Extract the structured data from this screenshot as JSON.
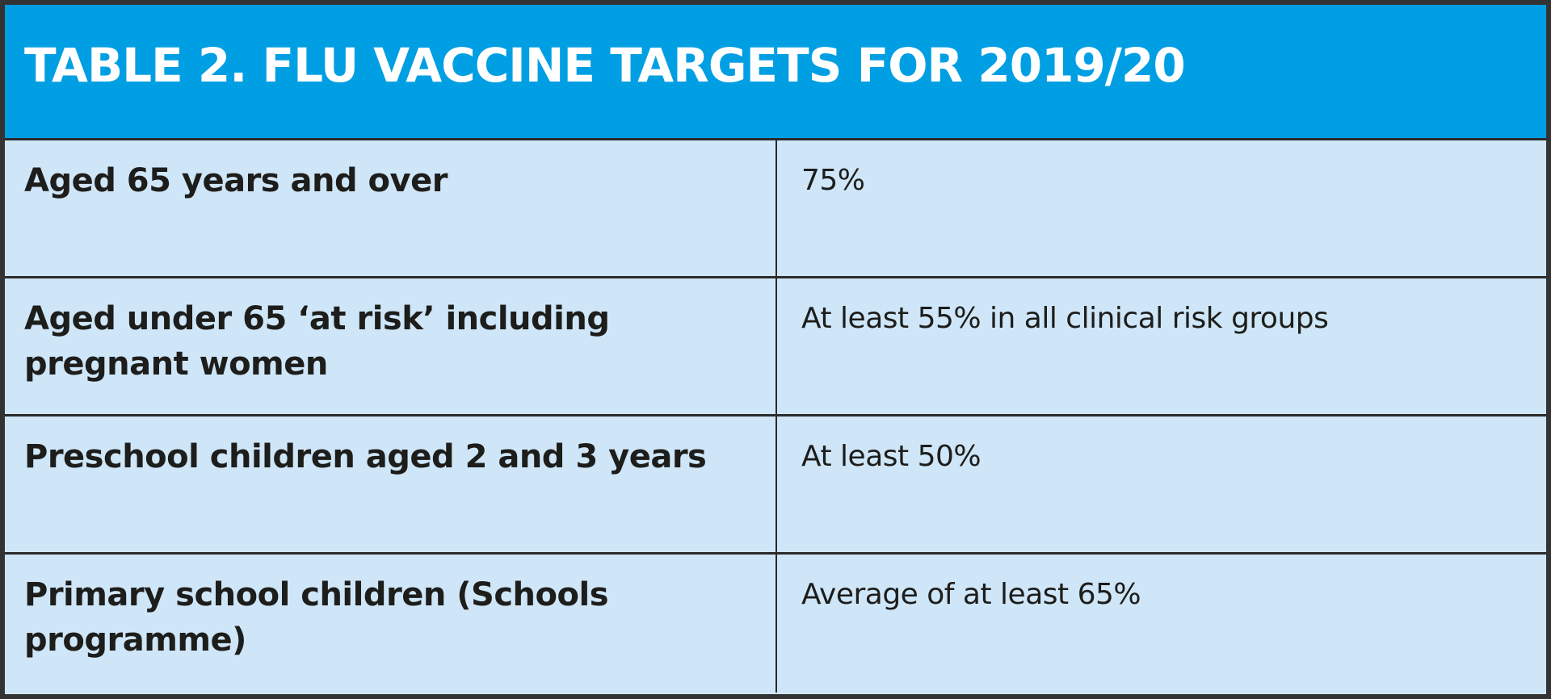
{
  "table": {
    "title": "TABLE 2. FLU VACCINE TARGETS FOR 2019/20",
    "rows": [
      {
        "group": "Aged 65 years and over",
        "target": "75%"
      },
      {
        "group": "Aged under 65 ‘at risk’ including pregnant women",
        "target": "At least 55% in all clinical risk groups"
      },
      {
        "group": "Preschool children aged 2 and 3 years",
        "target": "At least 50%"
      },
      {
        "group": "Primary school children (Schools programme)",
        "target": "Average of at least 65%"
      }
    ]
  },
  "colors": {
    "header_background": "#009fe3",
    "body_background": "#cfe6f8",
    "border": "#2b2b2b",
    "header_text": "#ffffff",
    "body_text": "#1d1d1b"
  }
}
